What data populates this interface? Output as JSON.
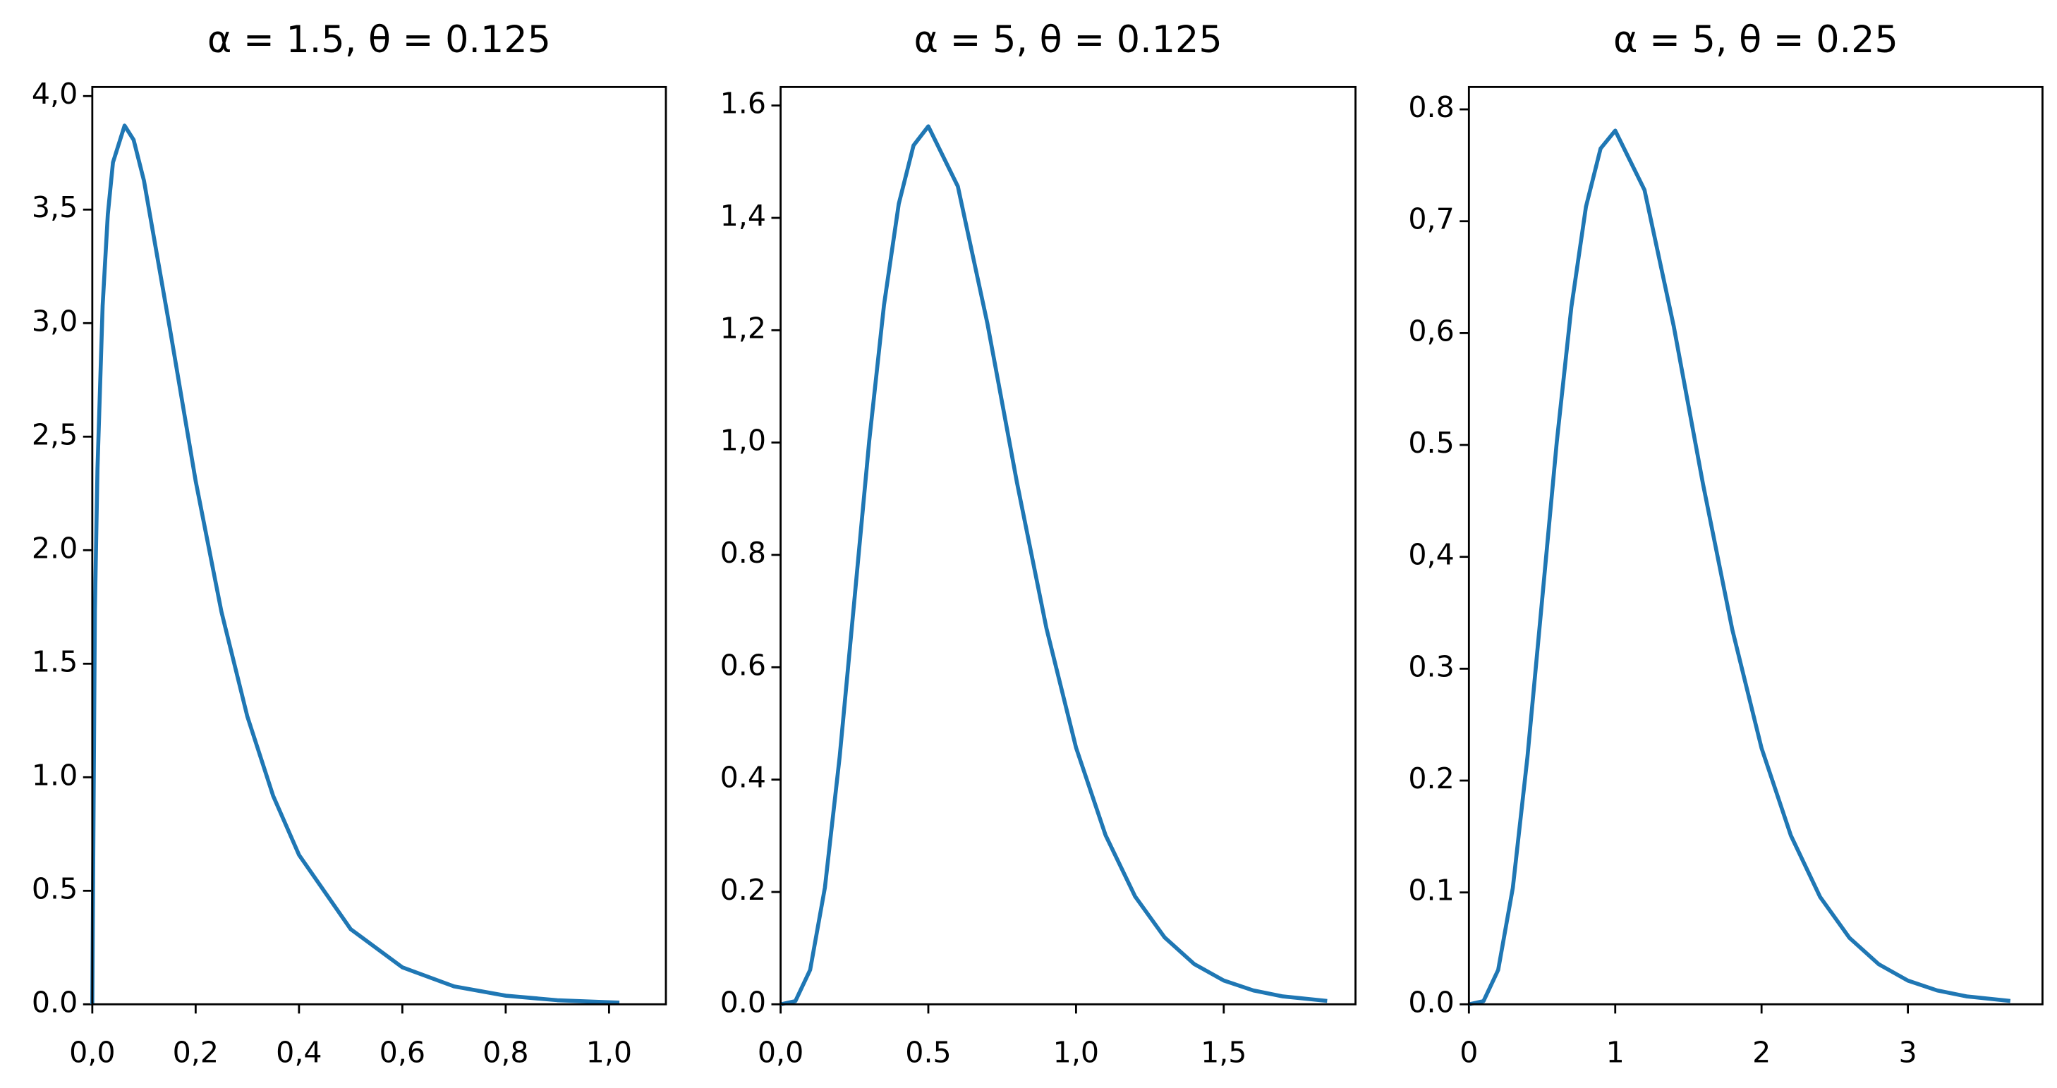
{
  "chart_data": [
    {
      "type": "line",
      "title": "α = 1.5, θ = 0.125",
      "x": [
        0,
        0.005,
        0.01,
        0.02,
        0.03,
        0.04,
        0.0625,
        0.08,
        0.1,
        0.15,
        0.2,
        0.25,
        0.3,
        0.35,
        0.4,
        0.5,
        0.6,
        0.7,
        0.8,
        0.9,
        1.02
      ],
      "series": [
        {
          "color": "#1f77b4",
          "values": [
            0,
            1.734,
            2.357,
            3.077,
            3.478,
            3.708,
            3.87,
            3.807,
            3.627,
            2.978,
            2.305,
            1.728,
            1.268,
            0.918,
            0.658,
            0.331,
            0.163,
            0.079,
            0.038,
            0.018,
            0.0074
          ]
        }
      ],
      "xlim": [
        0,
        1.11
      ],
      "ylim": [
        0,
        4.04
      ],
      "xticks": [
        {
          "value": 0,
          "label": "0,0"
        },
        {
          "value": 0.2,
          "label": "0,2"
        },
        {
          "value": 0.4,
          "label": "0,4"
        },
        {
          "value": 0.6,
          "label": "0,6"
        },
        {
          "value": 0.8,
          "label": "0,8"
        },
        {
          "value": 1,
          "label": "1,0"
        }
      ],
      "yticks": [
        {
          "value": 0,
          "label": "0.0"
        },
        0.5,
        {
          "value": 1,
          "label": "1.0"
        },
        1.5,
        {
          "value": 2,
          "label": "2.0"
        },
        {
          "value": 2.5,
          "label": "2,5"
        },
        {
          "value": 3,
          "label": "3,0"
        },
        {
          "value": 3.5,
          "label": "3,5"
        },
        {
          "value": 4,
          "label": "4,0"
        }
      ]
    },
    {
      "type": "line",
      "title": "α = 5, θ = 0.125",
      "x": [
        0,
        0.05,
        0.1,
        0.15,
        0.2,
        0.25,
        0.3,
        0.35,
        0.4,
        0.45,
        0.5,
        0.6,
        0.7,
        0.8,
        0.9,
        1.0,
        1.1,
        1.2,
        1.3,
        1.4,
        1.5,
        1.6,
        1.7,
        1.85
      ],
      "series": [
        {
          "color": "#1f77b4",
          "values": [
            0,
            0.0057,
            0.0613,
            0.208,
            0.441,
            0.721,
            1.003,
            1.245,
            1.425,
            1.529,
            1.563,
            1.456,
            1.212,
            0.929,
            0.669,
            0.457,
            0.301,
            0.192,
            0.119,
            0.0717,
            0.0424,
            0.0247,
            0.0141,
            0.006
          ]
        }
      ],
      "xlim": [
        0,
        1.946
      ],
      "ylim": [
        0,
        1.633
      ],
      "xticks": [
        {
          "value": 0,
          "label": "0,0"
        },
        0.5,
        {
          "value": 1,
          "label": "1,0"
        },
        {
          "value": 1.5,
          "label": "1,5"
        }
      ],
      "yticks": [
        {
          "value": 0,
          "label": "0.0"
        },
        0.2,
        0.4,
        0.6,
        0.8,
        {
          "value": 1,
          "label": "1,0"
        },
        {
          "value": 1.2,
          "label": "1,2"
        },
        {
          "value": 1.4,
          "label": "1,4"
        },
        1.6
      ]
    },
    {
      "type": "line",
      "title": "α = 5, θ = 0.25",
      "x": [
        0,
        0.1,
        0.2,
        0.3,
        0.4,
        0.5,
        0.6,
        0.7,
        0.8,
        0.9,
        1.0,
        1.2,
        1.4,
        1.6,
        1.8,
        2.0,
        2.2,
        2.4,
        2.6,
        2.8,
        3.0,
        3.2,
        3.4,
        3.7
      ],
      "series": [
        {
          "color": "#1f77b4",
          "values": [
            0,
            0.0029,
            0.0307,
            0.104,
            0.221,
            0.361,
            0.502,
            0.623,
            0.713,
            0.765,
            0.781,
            0.728,
            0.606,
            0.465,
            0.335,
            0.229,
            0.151,
            0.096,
            0.0595,
            0.0359,
            0.0212,
            0.0124,
            0.0071,
            0.003
          ]
        }
      ],
      "xlim": [
        0,
        3.92
      ],
      "ylim": [
        0,
        0.82
      ],
      "xticks": [
        0,
        1,
        2,
        3
      ],
      "yticks": [
        {
          "value": 0,
          "label": "0.0"
        },
        0.1,
        0.2,
        0.3,
        {
          "value": 0.4,
          "label": "0,4"
        },
        0.5,
        {
          "value": 0.6,
          "label": "0,6"
        },
        {
          "value": 0.7,
          "label": "0,7"
        },
        0.8
      ]
    }
  ]
}
